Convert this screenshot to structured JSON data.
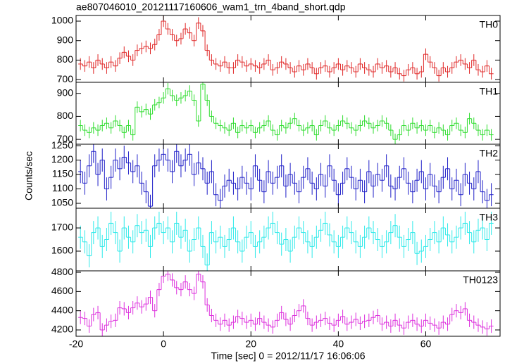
{
  "chart_data": {
    "type": "step",
    "title": "ae807046010_20121117160606_wam1_trn_4band_short.qdp",
    "xlabel": "Time [sec] 0 = 2012/11/17 16:06:06",
    "ylabel": "Counts/sec",
    "xlim": [
      -20,
      77
    ],
    "xticks": [
      -20,
      0,
      20,
      40,
      60
    ],
    "x": [
      -19,
      -18,
      -17,
      -16,
      -15,
      -14,
      -13,
      -12,
      -11,
      -10,
      -9,
      -8,
      -7,
      -6,
      -5,
      -4,
      -3,
      -2,
      -1,
      0,
      1,
      2,
      3,
      4,
      5,
      6,
      7,
      8,
      9,
      10,
      11,
      12,
      13,
      14,
      15,
      16,
      17,
      18,
      19,
      20,
      21,
      22,
      23,
      24,
      25,
      26,
      27,
      28,
      29,
      30,
      31,
      32,
      33,
      34,
      35,
      36,
      37,
      38,
      39,
      40,
      41,
      42,
      43,
      44,
      45,
      46,
      47,
      48,
      49,
      50,
      51,
      52,
      53,
      54,
      55,
      56,
      57,
      58,
      59,
      60,
      61,
      62,
      63,
      64,
      65,
      66,
      67,
      68,
      69,
      70,
      71,
      72,
      73,
      74,
      75
    ],
    "series": [
      {
        "name": "TH0",
        "color": "#e02828",
        "error": 30,
        "ylim": [
          686,
          1029
        ],
        "yticks": [
          700,
          800,
          900,
          1000
        ],
        "values": [
          780,
          770,
          790,
          760,
          800,
          780,
          760,
          790,
          770,
          810,
          840,
          820,
          800,
          850,
          860,
          870,
          860,
          880,
          930,
          1000,
          960,
          930,
          900,
          910,
          960,
          940,
          900,
          990,
          950,
          850,
          800,
          780,
          770,
          790,
          760,
          760,
          800,
          790,
          770,
          780,
          770,
          760,
          780,
          800,
          750,
          760,
          790,
          780,
          760,
          740,
          770,
          750,
          780,
          760,
          730,
          760,
          770,
          740,
          760,
          780,
          750,
          770,
          760,
          740,
          780,
          760,
          750,
          740,
          780,
          760,
          770,
          740,
          760,
          730,
          720,
          750,
          760,
          730,
          740,
          830,
          790,
          760,
          720,
          760,
          740,
          760,
          790,
          800,
          780,
          760,
          800,
          750,
          740,
          770,
          730
        ]
      },
      {
        "name": "TH1",
        "color": "#30dd30",
        "error": 25,
        "ylim": [
          679,
          948
        ],
        "yticks": [
          700,
          800,
          900
        ],
        "values": [
          760,
          740,
          730,
          750,
          740,
          760,
          770,
          750,
          780,
          760,
          730,
          760,
          720,
          840,
          820,
          830,
          810,
          850,
          860,
          880,
          920,
          890,
          870,
          880,
          890,
          910,
          870,
          780,
          940,
          870,
          800,
          770,
          760,
          750,
          740,
          770,
          730,
          760,
          750,
          760,
          730,
          750,
          760,
          780,
          740,
          720,
          760,
          750,
          770,
          790,
          760,
          740,
          750,
          760,
          720,
          760,
          780,
          750,
          740,
          760,
          780,
          770,
          750,
          740,
          760,
          780,
          770,
          750,
          760,
          780,
          770,
          740,
          700,
          720,
          760,
          740,
          770,
          750,
          760,
          740,
          760,
          730,
          750,
          740,
          720,
          760,
          770,
          740,
          730,
          790,
          770,
          740,
          720,
          740,
          720
        ]
      },
      {
        "name": "TH2",
        "color": "#2020c8",
        "error": 40,
        "ylim": [
          1033,
          1255
        ],
        "yticks": [
          1050,
          1100,
          1150,
          1200,
          1250
        ],
        "values": [
          1160,
          1120,
          1180,
          1230,
          1150,
          1200,
          1100,
          1140,
          1200,
          1170,
          1210,
          1190,
          1160,
          1180,
          1120,
          1090,
          1040,
          1180,
          1200,
          1220,
          1200,
          1160,
          1230,
          1180,
          1200,
          1220,
          1150,
          1190,
          1170,
          1120,
          1160,
          1080,
          1060,
          1110,
          1130,
          1120,
          1100,
          1140,
          1120,
          1100,
          1180,
          1130,
          1090,
          1160,
          1120,
          1140,
          1180,
          1110,
          1150,
          1120,
          1090,
          1140,
          1170,
          1120,
          1100,
          1150,
          1110,
          1180,
          1130,
          1080,
          1120,
          1170,
          1140,
          1100,
          1130,
          1090,
          1160,
          1110,
          1150,
          1130,
          1180,
          1110,
          1100,
          1140,
          1170,
          1120,
          1090,
          1130,
          1160,
          1100,
          1150,
          1110,
          1090,
          1140,
          1170,
          1100,
          1130,
          1080,
          1150,
          1120,
          1100,
          1160,
          1090,
          1060,
          1080
        ]
      },
      {
        "name": "TH3",
        "color": "#30eaea",
        "error": 50,
        "ylim": [
          1515,
          1785
        ],
        "yticks": [
          1600,
          1700
        ],
        "values": [
          1660,
          1640,
          1580,
          1680,
          1700,
          1620,
          1650,
          1720,
          1680,
          1600,
          1700,
          1660,
          1640,
          1710,
          1680,
          1690,
          1620,
          1700,
          1720,
          1680,
          1700,
          1640,
          1720,
          1660,
          1690,
          1600,
          1650,
          1700,
          1620,
          1540,
          1680,
          1640,
          1660,
          1620,
          1650,
          1700,
          1640,
          1600,
          1660,
          1680,
          1620,
          1640,
          1660,
          1700,
          1720,
          1680,
          1630,
          1650,
          1600,
          1660,
          1700,
          1680,
          1640,
          1620,
          1660,
          1690,
          1720,
          1670,
          1640,
          1620,
          1660,
          1700,
          1680,
          1640,
          1620,
          1660,
          1700,
          1680,
          1650,
          1620,
          1640,
          1680,
          1710,
          1660,
          1620,
          1650,
          1680,
          1590,
          1600,
          1620,
          1650,
          1680,
          1640,
          1700,
          1670,
          1640,
          1660,
          1700,
          1720,
          1680,
          1640,
          1690,
          1700,
          1650,
          1720
        ]
      },
      {
        "name": "TH0123",
        "color": "#dd30dd",
        "error": 70,
        "ylim": [
          4134,
          4815
        ],
        "yticks": [
          4200,
          4400,
          4600,
          4800
        ],
        "values": [
          4330,
          4320,
          4240,
          4360,
          4380,
          4200,
          4250,
          4290,
          4300,
          4430,
          4420,
          4380,
          4430,
          4480,
          4440,
          4470,
          4540,
          4400,
          4620,
          4760,
          4780,
          4720,
          4640,
          4620,
          4700,
          4620,
          4580,
          4780,
          4700,
          4460,
          4350,
          4300,
          4260,
          4300,
          4250,
          4280,
          4340,
          4320,
          4280,
          4300,
          4260,
          4320,
          4280,
          4250,
          4230,
          4300,
          4380,
          4310,
          4260,
          4350,
          4400,
          4450,
          4320,
          4250,
          4280,
          4300,
          4320,
          4270,
          4250,
          4300,
          4340,
          4260,
          4280,
          4310,
          4270,
          4290,
          4300,
          4330,
          4350,
          4260,
          4280,
          4240,
          4300,
          4250,
          4220,
          4280,
          4300,
          4260,
          4240,
          4300,
          4270,
          4250,
          4220,
          4280,
          4260,
          4360,
          4400,
          4380,
          4420,
          4300,
          4280,
          4250,
          4230,
          4210,
          4240
        ]
      }
    ]
  }
}
